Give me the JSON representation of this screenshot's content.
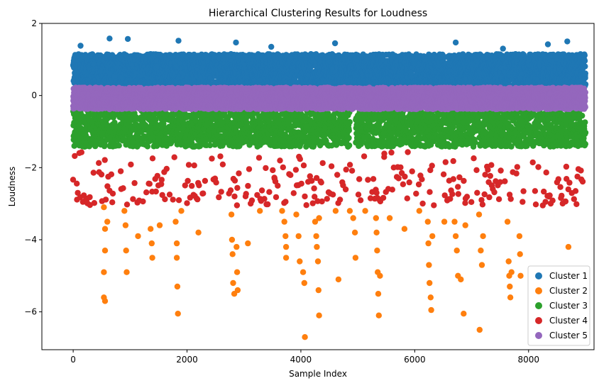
{
  "chart_data": {
    "type": "scatter",
    "title": "Hierarchical Clustering Results for Loudness",
    "xlabel": "Sample Index",
    "ylabel": "Loudness",
    "xlim": [
      -550,
      9150
    ],
    "ylim": [
      -7.05,
      2.0
    ],
    "x_ticks": [
      0,
      2000,
      4000,
      6000,
      8000
    ],
    "y_ticks": [
      2,
      0,
      -2,
      -4,
      -6
    ],
    "x_tick_labels": [
      "0",
      "2000",
      "4000",
      "6000",
      "8000"
    ],
    "y_tick_labels": [
      "2",
      "0",
      "−2",
      "−4",
      "−6"
    ],
    "grid": false,
    "legend_position": "bottom-right",
    "series": [
      {
        "name": "Cluster 1",
        "color": "#1f77b4",
        "band": [
          0.25,
          1.15
        ],
        "density": 5,
        "outliers": [
          [
            130,
            1.38
          ],
          [
            640,
            1.58
          ],
          [
            960,
            1.57
          ],
          [
            1850,
            1.52
          ],
          [
            2860,
            1.47
          ],
          [
            3480,
            1.35
          ],
          [
            4600,
            1.45
          ],
          [
            6720,
            1.47
          ],
          [
            7550,
            1.3
          ],
          [
            8340,
            1.42
          ],
          [
            8680,
            1.5
          ]
        ]
      },
      {
        "name": "Cluster 2",
        "color": "#ff7f0e",
        "points": [
          [
            540,
            -3.1
          ],
          [
            560,
            -3.7
          ],
          [
            560,
            -4.3
          ],
          [
            540,
            -4.9
          ],
          [
            540,
            -5.6
          ],
          [
            560,
            -5.7
          ],
          [
            600,
            -3.5
          ],
          [
            900,
            -3.2
          ],
          [
            920,
            -3.6
          ],
          [
            930,
            -4.3
          ],
          [
            940,
            -4.9
          ],
          [
            1140,
            -3.9
          ],
          [
            1360,
            -3.7
          ],
          [
            1380,
            -4.1
          ],
          [
            1390,
            -4.5
          ],
          [
            1520,
            -3.6
          ],
          [
            1800,
            -3.5
          ],
          [
            1820,
            -4.1
          ],
          [
            1820,
            -4.5
          ],
          [
            1830,
            -5.3
          ],
          [
            1840,
            -6.05
          ],
          [
            1900,
            -3.2
          ],
          [
            2200,
            -3.8
          ],
          [
            2780,
            -3.3
          ],
          [
            2790,
            -4.0
          ],
          [
            2800,
            -4.4
          ],
          [
            2810,
            -5.2
          ],
          [
            2830,
            -5.5
          ],
          [
            2870,
            -4.2
          ],
          [
            2880,
            -4.9
          ],
          [
            2890,
            -5.4
          ],
          [
            3070,
            -4.1
          ],
          [
            3280,
            -3.2
          ],
          [
            3670,
            -3.2
          ],
          [
            3710,
            -3.5
          ],
          [
            3730,
            -3.9
          ],
          [
            3740,
            -4.2
          ],
          [
            3740,
            -4.5
          ],
          [
            3920,
            -3.3
          ],
          [
            3960,
            -3.9
          ],
          [
            3980,
            -4.6
          ],
          [
            4040,
            -4.9
          ],
          [
            4060,
            -5.2
          ],
          [
            4070,
            -6.7
          ],
          [
            4250,
            -3.5
          ],
          [
            4270,
            -3.9
          ],
          [
            4280,
            -4.2
          ],
          [
            4300,
            -4.6
          ],
          [
            4310,
            -5.4
          ],
          [
            4320,
            -6.1
          ],
          [
            4320,
            -3.4
          ],
          [
            4610,
            -3.2
          ],
          [
            4660,
            -5.1
          ],
          [
            4860,
            -3.2
          ],
          [
            4920,
            -3.4
          ],
          [
            4950,
            -3.8
          ],
          [
            4960,
            -4.5
          ],
          [
            5130,
            -3.2
          ],
          [
            5320,
            -3.4
          ],
          [
            5330,
            -3.8
          ],
          [
            5340,
            -4.3
          ],
          [
            5350,
            -4.9
          ],
          [
            5360,
            -5.5
          ],
          [
            5370,
            -6.1
          ],
          [
            5390,
            -5.0
          ],
          [
            5560,
            -3.4
          ],
          [
            5820,
            -3.7
          ],
          [
            6080,
            -3.2
          ],
          [
            6230,
            -3.5
          ],
          [
            6240,
            -4.1
          ],
          [
            6250,
            -4.7
          ],
          [
            6260,
            -5.2
          ],
          [
            6280,
            -5.6
          ],
          [
            6290,
            -5.95
          ],
          [
            6310,
            -3.9
          ],
          [
            6520,
            -3.5
          ],
          [
            6700,
            -3.5
          ],
          [
            6720,
            -3.9
          ],
          [
            6740,
            -4.3
          ],
          [
            6760,
            -5.0
          ],
          [
            6810,
            -5.1
          ],
          [
            6860,
            -6.05
          ],
          [
            6890,
            -3.6
          ],
          [
            7130,
            -3.3
          ],
          [
            7140,
            -6.5
          ],
          [
            7160,
            -4.3
          ],
          [
            7180,
            -4.7
          ],
          [
            7200,
            -3.9
          ],
          [
            7630,
            -3.5
          ],
          [
            7650,
            -4.6
          ],
          [
            7660,
            -5.0
          ],
          [
            7670,
            -5.3
          ],
          [
            7680,
            -5.6
          ],
          [
            7700,
            -4.9
          ],
          [
            7840,
            -3.9
          ],
          [
            7850,
            -4.4
          ],
          [
            7860,
            -5.0
          ],
          [
            8700,
            -4.2
          ]
        ]
      },
      {
        "name": "Cluster 3",
        "color": "#2ca02c",
        "band": [
          -1.42,
          -0.42
        ],
        "density": 3,
        "gaps": [
          [
            4860,
            4960
          ]
        ]
      },
      {
        "name": "Cluster 4",
        "color": "#d62728",
        "band": [
          -3.05,
          -1.42
        ],
        "density": 0.7
      },
      {
        "name": "Cluster 5",
        "color": "#9467bd",
        "band": [
          -0.38,
          0.22
        ],
        "density": 6
      }
    ],
    "x_range": [
      0,
      9000
    ]
  }
}
